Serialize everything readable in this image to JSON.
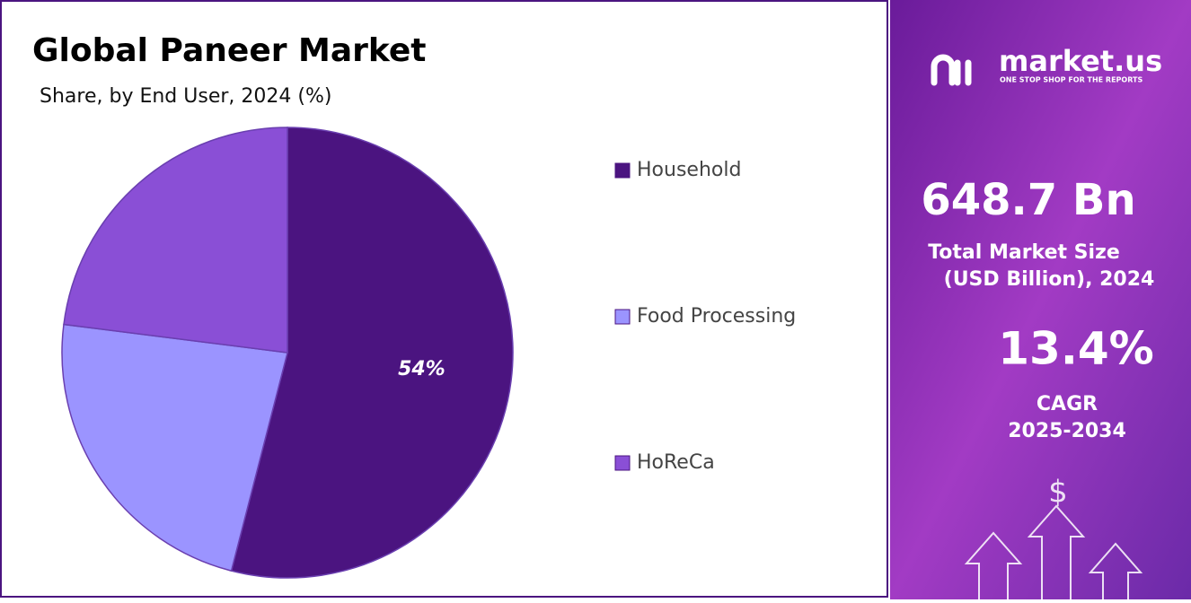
{
  "chart_data": {
    "type": "pie",
    "title": "Global Paneer Market",
    "subtitle": "Share, by End User, 2024 (%)",
    "categories": [
      "Household",
      "Food Processing",
      "HoReCa"
    ],
    "values": [
      54,
      23,
      23
    ],
    "value_labels": [
      "54%",
      null,
      null
    ],
    "colors": [
      "#4b1480",
      "#9b94ff",
      "#8a4fd6"
    ]
  },
  "panel": {
    "brand": "market.us",
    "tagline": "ONE STOP SHOP FOR THE REPORTS",
    "market_size": "648.7 Bn",
    "market_size_label_1": "Total Market Size",
    "market_size_label_2": "(USD Billion), 2024",
    "cagr": "13.4%",
    "cagr_label": "CAGR",
    "cagr_period": "2025-2034"
  }
}
